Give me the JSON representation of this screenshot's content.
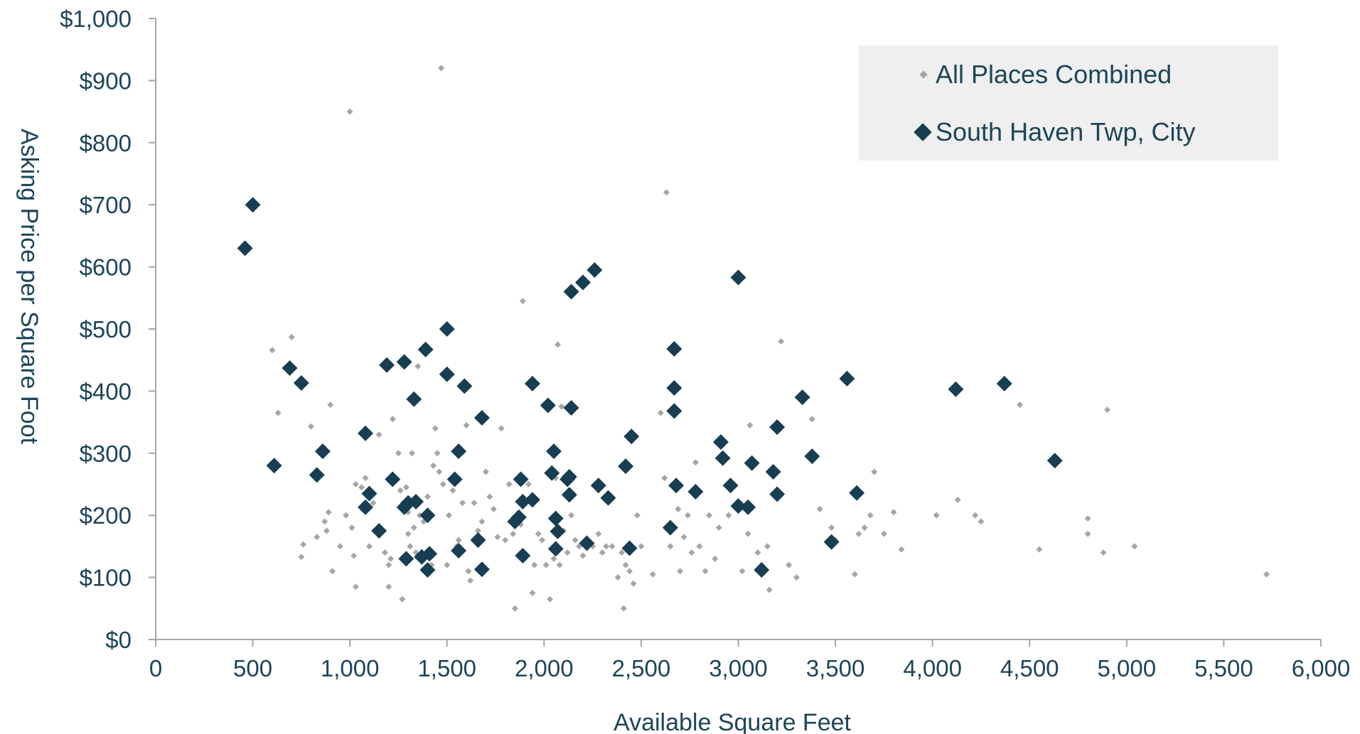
{
  "chart_data": {
    "type": "scatter",
    "xlabel": "Available Square Feet",
    "ylabel": "Asking Price per Square Foot",
    "xlim": [
      0,
      6000
    ],
    "ylim": [
      0,
      1000
    ],
    "x_ticks": [
      "0",
      "500",
      "1,000",
      "1,500",
      "2,000",
      "2,500",
      "3,000",
      "3,500",
      "4,000",
      "4,500",
      "5,000",
      "5,500",
      "6,000"
    ],
    "y_ticks": [
      "$0",
      "$100",
      "$200",
      "$300",
      "$400",
      "$500",
      "$600",
      "$700",
      "$800",
      "$900",
      "$1,000"
    ],
    "grid": false,
    "legend_position": "top-right",
    "colors": {
      "all": "#a6a6a6",
      "south_haven": "#173e52",
      "axis": "#a6a6a6",
      "text": "#1d4557",
      "legend_bg": "#efefef"
    },
    "series": [
      {
        "name": "All Places Combined",
        "marker": "small-diamond",
        "points": [
          [
            600,
            466
          ],
          [
            630,
            365
          ],
          [
            700,
            487
          ],
          [
            760,
            153
          ],
          [
            750,
            133
          ],
          [
            800,
            343
          ],
          [
            830,
            165
          ],
          [
            870,
            190
          ],
          [
            890,
            205
          ],
          [
            880,
            175
          ],
          [
            900,
            378
          ],
          [
            910,
            110
          ],
          [
            950,
            150
          ],
          [
            980,
            200
          ],
          [
            1000,
            850
          ],
          [
            1010,
            180
          ],
          [
            1020,
            135
          ],
          [
            1030,
            85
          ],
          [
            1030,
            250
          ],
          [
            1060,
            245
          ],
          [
            1080,
            260
          ],
          [
            1100,
            150
          ],
          [
            1120,
            220
          ],
          [
            1150,
            330
          ],
          [
            1180,
            140
          ],
          [
            1200,
            120
          ],
          [
            1200,
            85
          ],
          [
            1210,
            130
          ],
          [
            1220,
            355
          ],
          [
            1250,
            300
          ],
          [
            1260,
            240
          ],
          [
            1270,
            65
          ],
          [
            1290,
            245
          ],
          [
            1300,
            170
          ],
          [
            1300,
            205
          ],
          [
            1310,
            150
          ],
          [
            1320,
            300
          ],
          [
            1330,
            180
          ],
          [
            1340,
            140
          ],
          [
            1350,
            440
          ],
          [
            1360,
            200
          ],
          [
            1380,
            190
          ],
          [
            1400,
            230
          ],
          [
            1410,
            200
          ],
          [
            1420,
            120
          ],
          [
            1430,
            280
          ],
          [
            1440,
            340
          ],
          [
            1450,
            300
          ],
          [
            1460,
            270
          ],
          [
            1470,
            920
          ],
          [
            1480,
            250
          ],
          [
            1500,
            120
          ],
          [
            1510,
            200
          ],
          [
            1530,
            240
          ],
          [
            1550,
            150
          ],
          [
            1560,
            160
          ],
          [
            1580,
            220
          ],
          [
            1600,
            345
          ],
          [
            1610,
            110
          ],
          [
            1620,
            95
          ],
          [
            1640,
            220
          ],
          [
            1660,
            175
          ],
          [
            1680,
            190
          ],
          [
            1700,
            270
          ],
          [
            1720,
            230
          ],
          [
            1740,
            210
          ],
          [
            1760,
            165
          ],
          [
            1780,
            340
          ],
          [
            1800,
            160
          ],
          [
            1820,
            250
          ],
          [
            1840,
            170
          ],
          [
            1850,
            50
          ],
          [
            1860,
            200
          ],
          [
            1880,
            185
          ],
          [
            1890,
            545
          ],
          [
            1900,
            130
          ],
          [
            1920,
            250
          ],
          [
            1940,
            75
          ],
          [
            1950,
            120
          ],
          [
            1970,
            170
          ],
          [
            1990,
            160
          ],
          [
            2010,
            120
          ],
          [
            2030,
            65
          ],
          [
            2050,
            130
          ],
          [
            2060,
            260
          ],
          [
            2070,
            475
          ],
          [
            2080,
            120
          ],
          [
            2090,
            375
          ],
          [
            2100,
            175
          ],
          [
            2120,
            140
          ],
          [
            2140,
            200
          ],
          [
            2160,
            160
          ],
          [
            2180,
            150
          ],
          [
            2200,
            135
          ],
          [
            2220,
            150
          ],
          [
            2250,
            150
          ],
          [
            2280,
            170
          ],
          [
            2300,
            140
          ],
          [
            2320,
            150
          ],
          [
            2350,
            150
          ],
          [
            2380,
            100
          ],
          [
            2400,
            140
          ],
          [
            2410,
            50
          ],
          [
            2420,
            120
          ],
          [
            2440,
            110
          ],
          [
            2460,
            90
          ],
          [
            2480,
            200
          ],
          [
            2500,
            150
          ],
          [
            2560,
            105
          ],
          [
            2600,
            365
          ],
          [
            2620,
            260
          ],
          [
            2630,
            720
          ],
          [
            2650,
            150
          ],
          [
            2690,
            210
          ],
          [
            2700,
            110
          ],
          [
            2720,
            165
          ],
          [
            2740,
            200
          ],
          [
            2760,
            140
          ],
          [
            2780,
            285
          ],
          [
            2800,
            150
          ],
          [
            2830,
            110
          ],
          [
            2850,
            200
          ],
          [
            2880,
            130
          ],
          [
            2900,
            180
          ],
          [
            2950,
            200
          ],
          [
            3020,
            110
          ],
          [
            3050,
            170
          ],
          [
            3060,
            345
          ],
          [
            3100,
            140
          ],
          [
            3120,
            120
          ],
          [
            3150,
            150
          ],
          [
            3160,
            80
          ],
          [
            3220,
            480
          ],
          [
            3260,
            120
          ],
          [
            3300,
            100
          ],
          [
            3380,
            355
          ],
          [
            3420,
            210
          ],
          [
            3480,
            180
          ],
          [
            3500,
            160
          ],
          [
            3600,
            105
          ],
          [
            3620,
            170
          ],
          [
            3650,
            180
          ],
          [
            3680,
            200
          ],
          [
            3700,
            270
          ],
          [
            3750,
            170
          ],
          [
            3800,
            205
          ],
          [
            3840,
            145
          ],
          [
            4020,
            200
          ],
          [
            4130,
            225
          ],
          [
            4220,
            200
          ],
          [
            4250,
            190
          ],
          [
            4450,
            378
          ],
          [
            4550,
            145
          ],
          [
            4800,
            195
          ],
          [
            4800,
            170
          ],
          [
            4880,
            140
          ],
          [
            4900,
            370
          ],
          [
            5040,
            150
          ],
          [
            5720,
            105
          ]
        ]
      },
      {
        "name": "South Haven Twp, City",
        "marker": "diamond",
        "points": [
          [
            460,
            630
          ],
          [
            500,
            700
          ],
          [
            610,
            280
          ],
          [
            690,
            437
          ],
          [
            750,
            413
          ],
          [
            830,
            265
          ],
          [
            860,
            303
          ],
          [
            1080,
            332
          ],
          [
            1080,
            213
          ],
          [
            1100,
            235
          ],
          [
            1150,
            175
          ],
          [
            1190,
            442
          ],
          [
            1220,
            258
          ],
          [
            1280,
            447
          ],
          [
            1280,
            213
          ],
          [
            1290,
            130
          ],
          [
            1300,
            220
          ],
          [
            1330,
            387
          ],
          [
            1340,
            222
          ],
          [
            1370,
            133
          ],
          [
            1390,
            467
          ],
          [
            1400,
            200
          ],
          [
            1400,
            112
          ],
          [
            1410,
            138
          ],
          [
            1500,
            500
          ],
          [
            1500,
            427
          ],
          [
            1540,
            258
          ],
          [
            1560,
            303
          ],
          [
            1560,
            143
          ],
          [
            1590,
            408
          ],
          [
            1660,
            160
          ],
          [
            1680,
            357
          ],
          [
            1680,
            113
          ],
          [
            1850,
            190
          ],
          [
            1870,
            197
          ],
          [
            1880,
            258
          ],
          [
            1890,
            222
          ],
          [
            1890,
            135
          ],
          [
            1940,
            412
          ],
          [
            1940,
            225
          ],
          [
            2020,
            377
          ],
          [
            2040,
            268
          ],
          [
            2050,
            303
          ],
          [
            2060,
            195
          ],
          [
            2060,
            146
          ],
          [
            2070,
            174
          ],
          [
            2120,
            258
          ],
          [
            2130,
            262
          ],
          [
            2130,
            233
          ],
          [
            2140,
            560
          ],
          [
            2140,
            373
          ],
          [
            2200,
            575
          ],
          [
            2220,
            155
          ],
          [
            2260,
            595
          ],
          [
            2280,
            248
          ],
          [
            2330,
            228
          ],
          [
            2420,
            279
          ],
          [
            2440,
            147
          ],
          [
            2450,
            327
          ],
          [
            2650,
            180
          ],
          [
            2670,
            468
          ],
          [
            2670,
            405
          ],
          [
            2670,
            368
          ],
          [
            2680,
            248
          ],
          [
            2780,
            238
          ],
          [
            3000,
            583
          ],
          [
            2910,
            318
          ],
          [
            2920,
            292
          ],
          [
            2960,
            248
          ],
          [
            3000,
            215
          ],
          [
            3050,
            213
          ],
          [
            3070,
            284
          ],
          [
            3120,
            112
          ],
          [
            3180,
            270
          ],
          [
            3200,
            342
          ],
          [
            3200,
            234
          ],
          [
            3330,
            390
          ],
          [
            3380,
            295
          ],
          [
            3480,
            157
          ],
          [
            3560,
            420
          ],
          [
            3610,
            236
          ],
          [
            4120,
            403
          ],
          [
            4370,
            412
          ],
          [
            4630,
            288
          ]
        ]
      }
    ]
  }
}
